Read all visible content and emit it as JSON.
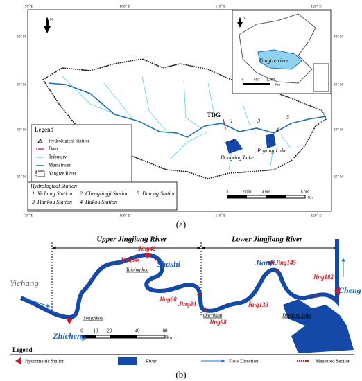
{
  "panel_a": {
    "caption": "(a)",
    "longitude_labels": [
      "90° E",
      "100° E",
      "110° E",
      "120° E"
    ],
    "latitude_labels": [
      "40° N",
      "35° N",
      "30° N",
      "25° N"
    ],
    "north": "N",
    "legend": {
      "title": "Legend",
      "items": [
        "Hydrological Station",
        "Dam",
        "Tributary",
        "Mainstream",
        "Yangtze River"
      ]
    },
    "station_table": {
      "title": "Hydrological Station",
      "stations": [
        {
          "number": "1",
          "name": "Yichang Station"
        },
        {
          "number": "2",
          "name": "Chenglingji Station"
        },
        {
          "number": "3",
          "name": "Hankou Station"
        },
        {
          "number": "4",
          "name": "Hukou Station"
        },
        {
          "number": "5",
          "name": "Datong Station"
        }
      ]
    },
    "inset": {
      "label": "Yangtze river",
      "scale": [
        "0",
        "650",
        "1,300"
      ],
      "unit": "Km"
    },
    "scale": {
      "ticks": [
        "0",
        "2,000",
        "4,000",
        "8,000"
      ],
      "unit": "Km"
    },
    "map_labels": {
      "dam": "TDG",
      "dongting": "Dongting Lake",
      "poyang": "Poyang Lake"
    }
  },
  "panel_b": {
    "caption": "(b)",
    "reaches": [
      "Upper Jingjiang River",
      "Lower Jingjiang River"
    ],
    "cities": [
      "Yichang",
      "Zhicheng",
      "Shashi",
      "Jianli",
      "Cheng lingji"
    ],
    "outlets": [
      "Songzikou",
      "Taiping kou",
      "Ouchikou",
      "Dongting Lake"
    ],
    "sections": [
      "Jing34",
      "Jing42",
      "Jing60",
      "Jing84",
      "Jing98",
      "Jing133",
      "Jing145",
      "Jing182"
    ],
    "scale": {
      "ticks": [
        "0",
        "10",
        "20",
        "40",
        "60"
      ],
      "unit": "Km"
    },
    "legend": {
      "title": "Legend",
      "items": [
        "Hydrometric Station",
        "River",
        "Flow Direction",
        "Measured Section"
      ]
    }
  }
}
